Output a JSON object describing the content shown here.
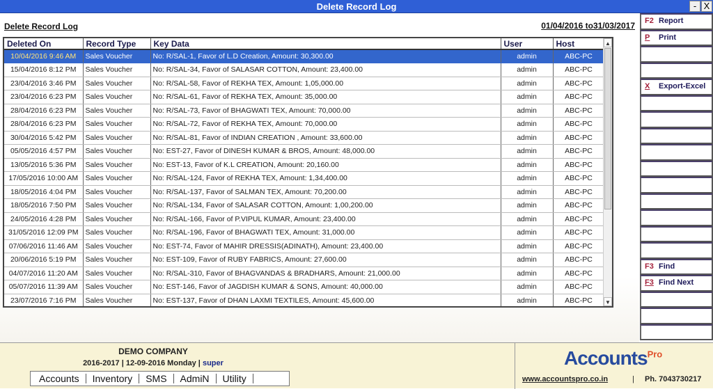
{
  "window": {
    "title": "Delete Record Log",
    "minimize": "-",
    "close": "X"
  },
  "header": {
    "title": "Delete Record Log",
    "date_range": "01/04/2016 to31/03/2017"
  },
  "table": {
    "columns": [
      "Deleted On",
      "Record Type",
      "Key Data",
      "User",
      "Host"
    ],
    "selected_row": 0,
    "rows": [
      [
        "10/04/2016 9:46 AM",
        "Sales Voucher",
        "No: R/SAL-1, Favor of L.D Creation, Amount: 30,300.00",
        "admin",
        "ABC-PC"
      ],
      [
        "15/04/2016 8:12 PM",
        "Sales Voucher",
        "No: R/SAL-34, Favor of SALASAR COTTON, Amount: 23,400.00",
        "admin",
        "ABC-PC"
      ],
      [
        "23/04/2016 3:46 PM",
        "Sales Voucher",
        "No: R/SAL-58, Favor of REKHA TEX, Amount: 1,05,000.00",
        "admin",
        "ABC-PC"
      ],
      [
        "23/04/2016 6:23 PM",
        "Sales Voucher",
        "No: R/SAL-61, Favor of REKHA TEX, Amount: 35,000.00",
        "admin",
        "ABC-PC"
      ],
      [
        "28/04/2016 6:23 PM",
        "Sales Voucher",
        "No: R/SAL-73, Favor of BHAGWATI TEX, Amount: 70,000.00",
        "admin",
        "ABC-PC"
      ],
      [
        "28/04/2016 6:23 PM",
        "Sales Voucher",
        "No: R/SAL-72, Favor of REKHA TEX, Amount: 70,000.00",
        "admin",
        "ABC-PC"
      ],
      [
        "30/04/2016 5:42 PM",
        "Sales Voucher",
        "No: R/SAL-81, Favor of INDIAN CREATION , Amount: 33,600.00",
        "admin",
        "ABC-PC"
      ],
      [
        "05/05/2016 4:57 PM",
        "Sales Voucher",
        "No: EST-27, Favor of DINESH KUMAR & BROS, Amount: 48,000.00",
        "admin",
        "ABC-PC"
      ],
      [
        "13/05/2016 5:36 PM",
        "Sales Voucher",
        "No: EST-13, Favor of K.L CREATION, Amount: 20,160.00",
        "admin",
        "ABC-PC"
      ],
      [
        "17/05/2016 10:00 AM",
        "Sales Voucher",
        "No: R/SAL-124, Favor of REKHA TEX, Amount: 1,34,400.00",
        "admin",
        "ABC-PC"
      ],
      [
        "18/05/2016 4:04 PM",
        "Sales Voucher",
        "No: R/SAL-137, Favor of SALMAN TEX, Amount: 70,200.00",
        "admin",
        "ABC-PC"
      ],
      [
        "18/05/2016 7:50 PM",
        "Sales Voucher",
        "No: R/SAL-134, Favor of SALASAR COTTON, Amount: 1,00,200.00",
        "admin",
        "ABC-PC"
      ],
      [
        "24/05/2016 4:28 PM",
        "Sales Voucher",
        "No: R/SAL-166, Favor of P.VIPUL KUMAR, Amount: 23,400.00",
        "admin",
        "ABC-PC"
      ],
      [
        "31/05/2016 12:09 PM",
        "Sales Voucher",
        "No: R/SAL-196, Favor of BHAGWATI TEX, Amount: 31,000.00",
        "admin",
        "ABC-PC"
      ],
      [
        "07/06/2016 11:46 AM",
        "Sales Voucher",
        "No: EST-74, Favor of MAHIR DRESSIS(ADINATH), Amount: 23,400.00",
        "admin",
        "ABC-PC"
      ],
      [
        "20/06/2016 5:19 PM",
        "Sales Voucher",
        "No: EST-109, Favor of RUBY FABRICS, Amount: 27,600.00",
        "admin",
        "ABC-PC"
      ],
      [
        "04/07/2016 11:20 AM",
        "Sales Voucher",
        "No: R/SAL-310, Favor of BHAGVANDAS & BRADHARS, Amount: 21,000.00",
        "admin",
        "ABC-PC"
      ],
      [
        "05/07/2016 11:39 AM",
        "Sales Voucher",
        "No: EST-146, Favor of JAGDISH KUMAR & SONS, Amount: 40,000.00",
        "admin",
        "ABC-PC"
      ],
      [
        "23/07/2016 7:16 PM",
        "Sales Voucher",
        "No: EST-137, Favor of DHAN LAXMI TEXTILES, Amount: 45,600.00",
        "admin",
        "ABC-PC"
      ]
    ]
  },
  "sidebar": {
    "buttons": [
      {
        "key": "F2",
        "label": "Report"
      },
      {
        "key": "P",
        "label": "Print"
      },
      {
        "key": "",
        "label": ""
      },
      {
        "key": "",
        "label": ""
      },
      {
        "key": "X",
        "label": "Export-Excel"
      },
      {
        "key": "",
        "label": ""
      },
      {
        "key": "",
        "label": ""
      },
      {
        "key": "",
        "label": ""
      },
      {
        "key": "",
        "label": ""
      },
      {
        "key": "",
        "label": ""
      },
      {
        "key": "",
        "label": ""
      },
      {
        "key": "",
        "label": ""
      },
      {
        "key": "",
        "label": ""
      },
      {
        "key": "",
        "label": ""
      },
      {
        "key": "",
        "label": ""
      },
      {
        "key": "F3",
        "label": "Find"
      },
      {
        "key": "F3",
        "label": "Find Next"
      },
      {
        "key": "",
        "label": ""
      },
      {
        "key": "",
        "label": ""
      },
      {
        "key": "",
        "label": ""
      }
    ]
  },
  "footer": {
    "company": "DEMO COMPANY",
    "fy": "2016-2017 | 12-09-2016 Monday",
    "separator": " | ",
    "user": "super",
    "menu": [
      "Accounts",
      "Inventory",
      "SMS",
      "AdmiN",
      "Utility"
    ],
    "logo_text": "Accounts",
    "logo_sup": "Pro",
    "url": "www.accountspro.co.in",
    "sep": "|",
    "phone": "Ph. 7043730217"
  }
}
